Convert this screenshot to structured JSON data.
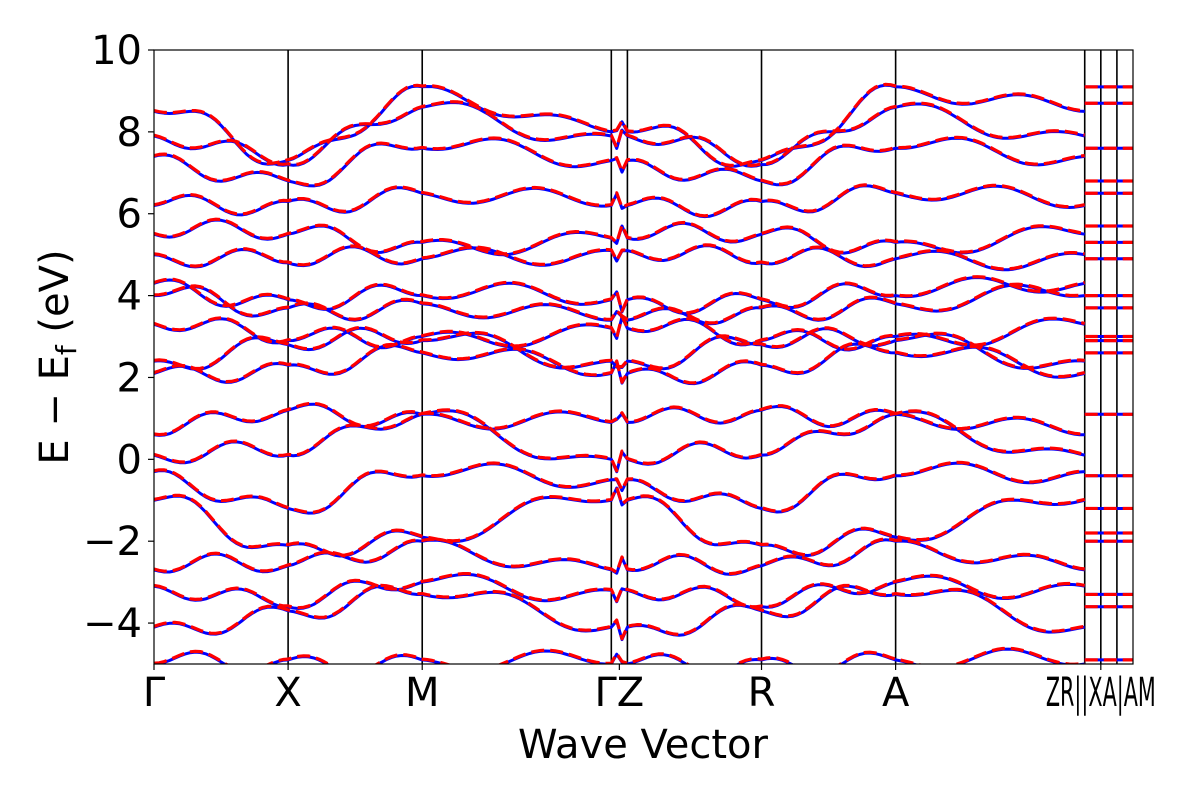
{
  "chart_data": {
    "type": "line",
    "title": "",
    "xlabel": "Wave Vector",
    "ylabel": "E − E",
    "ylabel_sub": "f",
    "ylabel_unit": "(eV)",
    "ylim": [
      -5,
      10
    ],
    "yticks": [
      -4,
      -2,
      0,
      2,
      4,
      6,
      8,
      10
    ],
    "ytick_labels": [
      "−4",
      "−2",
      "0",
      "2",
      "4",
      "6",
      "8",
      "10"
    ],
    "xlim": [
      0,
      7.3
    ],
    "kpoints": [
      {
        "label": "Γ",
        "x": 0.0
      },
      {
        "label": "X",
        "x": 1.0
      },
      {
        "label": "M",
        "x": 2.0
      },
      {
        "label": "Γ",
        "x": 3.41
      },
      {
        "label": "Z",
        "x": 3.53
      },
      {
        "label": "R",
        "x": 4.53
      },
      {
        "label": "A",
        "x": 5.53
      },
      {
        "label": "Z",
        "x": 6.94
      },
      {
        "label": "R",
        "x": 6.94
      },
      {
        "label": "|",
        "x": 6.94
      },
      {
        "label": "X",
        "x": 7.06
      },
      {
        "label": "|",
        "x": 7.06
      },
      {
        "label": "A",
        "x": 7.18
      },
      {
        "label": "M",
        "x": 7.18
      }
    ],
    "xtick_groups": [
      {
        "x": 0.0,
        "text": "Γ"
      },
      {
        "x": 1.0,
        "text": "X"
      },
      {
        "x": 2.0,
        "text": "M"
      },
      {
        "x": 3.47,
        "text": "ΓZ"
      },
      {
        "x": 4.53,
        "text": "R"
      },
      {
        "x": 5.53,
        "text": "A"
      },
      {
        "x": 7.06,
        "text": "ZR||XA|AM"
      }
    ],
    "vertical_lines_x": [
      1.0,
      2.0,
      3.41,
      3.53,
      4.53,
      5.53,
      6.94,
      7.06,
      7.18
    ],
    "series": [
      {
        "style": "solid",
        "color": "#0000ff"
      },
      {
        "style": "dashed",
        "color": "#ff0000"
      }
    ],
    "bands_at_kpoints": {
      "x": [
        0.0,
        1.0,
        2.0,
        3.41,
        3.53,
        4.53,
        5.53,
        6.94
      ],
      "bands": [
        [
          -5.0,
          -4.9,
          -4.9,
          -5.0,
          -5.0,
          -4.9,
          -4.9,
          -5.0
        ],
        [
          -4.1,
          -3.7,
          -3.3,
          -4.1,
          -4.1,
          -3.7,
          -3.3,
          -4.1
        ],
        [
          -3.1,
          -3.6,
          -3.0,
          -3.2,
          -3.2,
          -3.6,
          -3.0,
          -3.1
        ],
        [
          -2.7,
          -2.6,
          -2.0,
          -2.7,
          -2.7,
          -2.6,
          -2.0,
          -2.7
        ],
        [
          -1.0,
          -2.1,
          -1.9,
          -1.0,
          -1.0,
          -2.1,
          -1.9,
          -1.0
        ],
        [
          -0.3,
          -1.2,
          -0.4,
          -0.5,
          -0.5,
          -1.2,
          -0.4,
          -0.3
        ],
        [
          0.1,
          0.1,
          1.1,
          0.0,
          0.0,
          0.1,
          1.1,
          0.1
        ],
        [
          0.6,
          1.2,
          1.1,
          0.9,
          0.9,
          1.2,
          1.1,
          0.6
        ],
        [
          2.1,
          2.3,
          2.6,
          2.1,
          2.1,
          2.3,
          2.6,
          2.1
        ],
        [
          2.4,
          2.8,
          2.9,
          2.4,
          2.4,
          2.8,
          2.9,
          2.4
        ],
        [
          3.3,
          2.9,
          3.0,
          3.2,
          3.2,
          2.9,
          3.0,
          3.3
        ],
        [
          4.0,
          3.7,
          3.8,
          3.4,
          3.4,
          3.7,
          3.8,
          4.0
        ],
        [
          4.3,
          3.9,
          4.0,
          3.9,
          3.9,
          3.9,
          4.0,
          4.3
        ],
        [
          5.0,
          4.8,
          4.9,
          5.1,
          5.1,
          4.8,
          4.9,
          5.0
        ],
        [
          5.5,
          5.5,
          5.3,
          5.4,
          5.4,
          5.5,
          5.3,
          5.5
        ],
        [
          6.2,
          6.3,
          6.5,
          6.2,
          6.2,
          6.3,
          6.5,
          6.2
        ],
        [
          7.4,
          6.8,
          7.6,
          7.3,
          7.3,
          6.8,
          7.6,
          7.4
        ],
        [
          7.9,
          7.2,
          8.6,
          7.9,
          7.9,
          7.2,
          8.6,
          7.9
        ],
        [
          8.5,
          7.3,
          9.1,
          8.0,
          8.0,
          7.3,
          9.1,
          8.5
        ]
      ]
    },
    "extra_segment_levels": [
      -4.9,
      -3.6,
      -3.3,
      -2.0,
      -1.8,
      -1.2,
      -0.4,
      1.1,
      2.6,
      2.9,
      3.0,
      3.7,
      4.0,
      4.9,
      5.3,
      5.7,
      6.5,
      6.8,
      7.6,
      8.7,
      9.1
    ]
  }
}
